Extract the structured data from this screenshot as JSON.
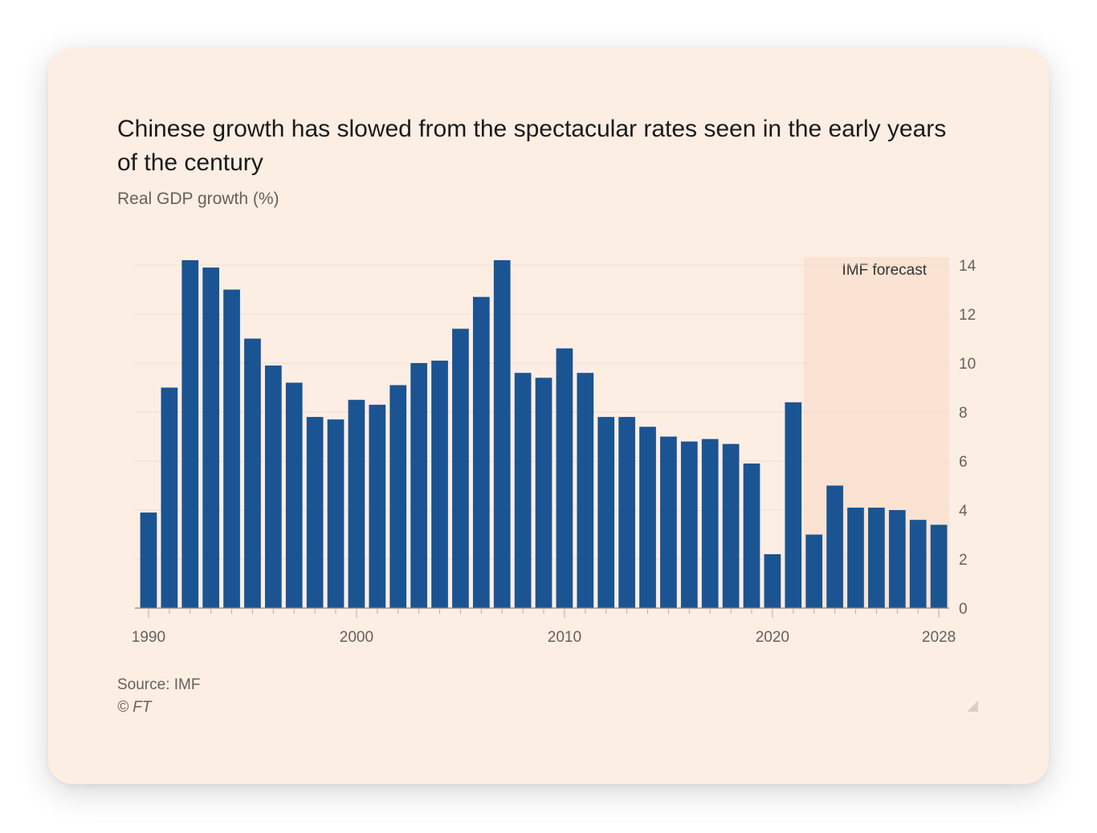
{
  "card": {
    "title": "Chinese growth has slowed from the spectacular rates seen in the early years of the century",
    "subtitle": "Real GDP growth (%)",
    "source": "Source: IMF",
    "copyright": "© FT"
  },
  "chart_data": {
    "type": "bar",
    "title": "Chinese growth has slowed from the spectacular rates seen in the early years of the century",
    "ylabel": "Real GDP growth (%)",
    "xlabel": "",
    "x": [
      1990,
      1991,
      1992,
      1993,
      1994,
      1995,
      1996,
      1997,
      1998,
      1999,
      2000,
      2001,
      2002,
      2003,
      2004,
      2005,
      2006,
      2007,
      2008,
      2009,
      2010,
      2011,
      2012,
      2013,
      2014,
      2015,
      2016,
      2017,
      2018,
      2019,
      2020,
      2021,
      2022,
      2023,
      2024,
      2025,
      2026,
      2027,
      2028
    ],
    "values": [
      3.9,
      9.0,
      14.2,
      13.9,
      13.0,
      11.0,
      9.9,
      9.2,
      7.8,
      7.7,
      8.5,
      8.3,
      9.1,
      10.0,
      10.1,
      11.4,
      12.7,
      14.2,
      9.6,
      9.4,
      10.6,
      9.6,
      7.8,
      7.8,
      7.4,
      7.0,
      6.8,
      6.9,
      6.7,
      5.9,
      2.2,
      8.4,
      3.0,
      5.0,
      4.1,
      4.1,
      4.0,
      3.6,
      3.4
    ],
    "ylim": [
      0,
      14
    ],
    "yticks": [
      0,
      2,
      4,
      6,
      8,
      10,
      12,
      14
    ],
    "xticks_labeled": [
      1990,
      2000,
      2010,
      2020,
      2028
    ],
    "y_axis_position": "right",
    "grid": true,
    "bar_color": "#1a5492",
    "annotations": [
      {
        "label": "IMF forecast",
        "x_start": 2022,
        "x_end": 2028
      }
    ]
  },
  "colors": {
    "background": "#fdeee4",
    "bar": "#1a5492",
    "forecast_band": "#fbe3d3",
    "grid": "#f1ddd0"
  }
}
